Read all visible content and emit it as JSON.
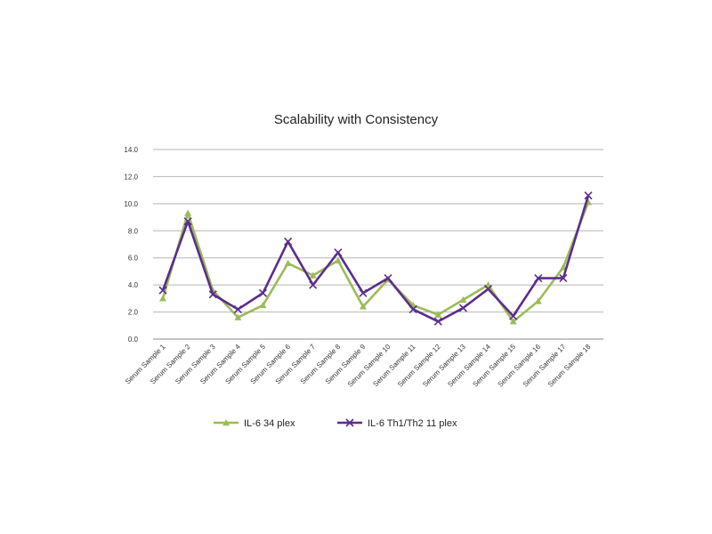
{
  "chart_data": {
    "type": "line",
    "title": "Scalability with Consistency",
    "xlabel": "",
    "ylabel": "",
    "ylim": [
      0,
      14
    ],
    "yticks": [
      "0.0",
      "2.0",
      "4.0",
      "6.0",
      "8.0",
      "10.0",
      "12.0",
      "14.0"
    ],
    "grid": true,
    "legend_position": "bottom",
    "categories": [
      "Serum Sample 1",
      "Serum Sample 2",
      "Serum Sample 3",
      "Serum Sample 4",
      "Serum Sample 5",
      "Serum Sample 6",
      "Serum Sample 7",
      "Serum Sample 8",
      "Serum Sample 9",
      "Serum Sample 10",
      "Serum Sample 11",
      "Serum Sample 12",
      "Serum Sample 13",
      "Serum Sample 14",
      "Serum Sample 15",
      "Serum Sample 16",
      "Serum Sample 17",
      "Serum Sample 18"
    ],
    "series": [
      {
        "name": "IL-6 34 plex",
        "color": "#9bbb59",
        "marker": "triangle",
        "values": [
          3.0,
          9.3,
          3.6,
          1.6,
          2.5,
          5.6,
          4.7,
          5.8,
          2.4,
          4.4,
          2.5,
          1.8,
          2.9,
          4.0,
          1.3,
          2.8,
          5.3,
          10.1
        ]
      },
      {
        "name": "IL-6 Th1/Th2 11 plex",
        "color": "#5b2d8e",
        "marker": "x",
        "values": [
          3.6,
          8.7,
          3.3,
          2.2,
          3.4,
          7.2,
          4.0,
          6.4,
          3.4,
          4.5,
          2.2,
          1.3,
          2.3,
          3.7,
          1.7,
          4.5,
          4.5,
          10.6
        ]
      }
    ]
  }
}
